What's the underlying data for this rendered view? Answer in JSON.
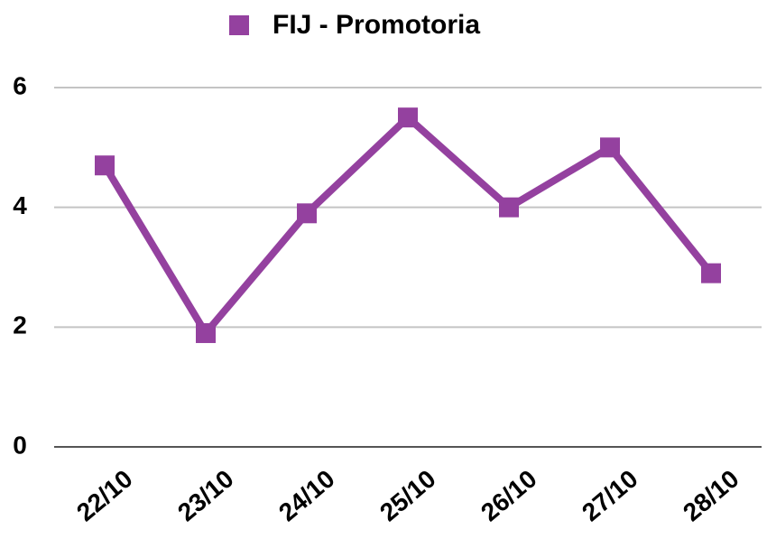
{
  "chart_data": {
    "type": "line",
    "categories": [
      "22/10",
      "23/10",
      "24/10",
      "25/10",
      "26/10",
      "27/10",
      "28/10"
    ],
    "series": [
      {
        "name": "FIJ - Promotoria",
        "color": "#94419f",
        "values": [
          4.7,
          1.9,
          3.9,
          5.5,
          4.0,
          5.0,
          2.9
        ]
      }
    ],
    "ylim": [
      0,
      6
    ],
    "yticks": [
      0,
      2,
      4,
      6
    ],
    "grid": true,
    "legend": "top"
  }
}
